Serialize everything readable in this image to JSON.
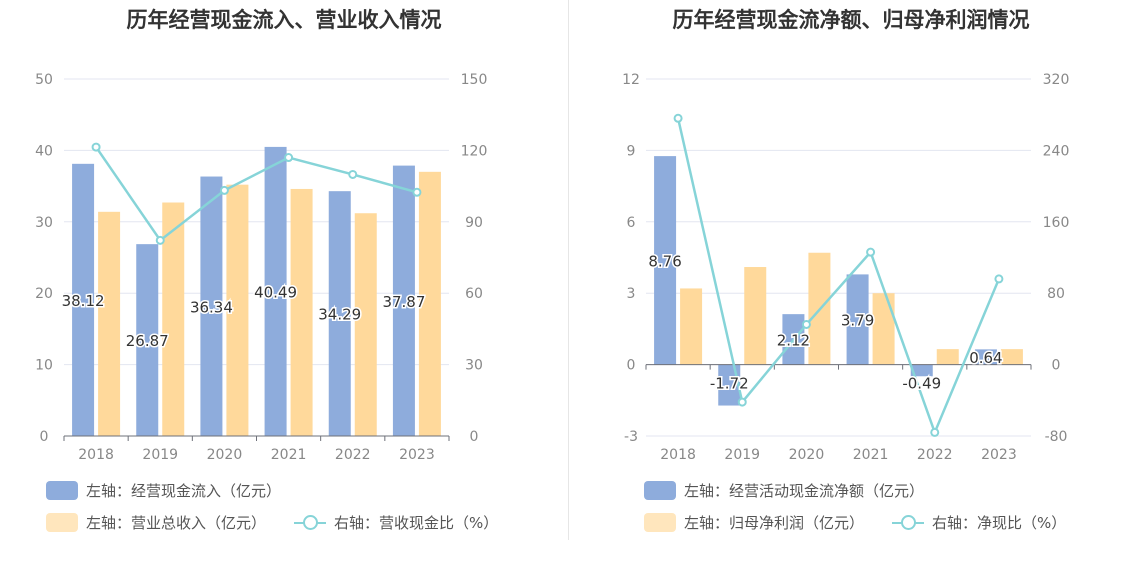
{
  "colors": {
    "bar_primary": "#8eacdc",
    "bar_secondary": "#ffd99b",
    "line": "#86d4d8",
    "axis_text": "#888888",
    "grid": "#e3e6f0"
  },
  "left": {
    "title": "历年经营现金流入、营业收入情况",
    "legend": {
      "bar1": "左轴：经营现金流入（亿元）",
      "bar2": "左轴：营业总收入（亿元）",
      "line": "右轴：营收现金比（%）"
    }
  },
  "right": {
    "title": "历年经营现金流净额、归母净利润情况",
    "legend": {
      "bar1": "左轴：经营活动现金流净额（亿元）",
      "bar2": "左轴：归母净利润（亿元）",
      "line": "右轴：净现比（%）"
    }
  },
  "chart_data": [
    {
      "type": "bar",
      "title": "历年经营现金流入、营业收入情况",
      "categories": [
        "2018",
        "2019",
        "2020",
        "2021",
        "2022",
        "2023"
      ],
      "ylim": [
        0,
        50
      ],
      "yticks": [
        "0",
        "10",
        "20",
        "30",
        "40",
        "50"
      ],
      "y2lim": [
        0,
        150
      ],
      "y2ticks": [
        "0",
        "30",
        "60",
        "90",
        "120",
        "150"
      ],
      "grid": true,
      "legend_position": "bottom",
      "series": [
        {
          "name": "左轴：经营现金流入（亿元）",
          "axis": "left",
          "kind": "bar",
          "values": [
            38.12,
            26.87,
            36.34,
            40.49,
            34.29,
            37.87
          ],
          "labels": [
            "38.12",
            "26.87",
            "36.34",
            "40.49",
            "34.29",
            "37.87"
          ]
        },
        {
          "name": "左轴：营业总收入（亿元）",
          "axis": "left",
          "kind": "bar",
          "values": [
            31.4,
            32.7,
            35.2,
            34.6,
            31.2,
            37.0
          ]
        },
        {
          "name": "右轴：营收现金比（%）",
          "axis": "right",
          "kind": "line",
          "values": [
            121.4,
            82.2,
            103.2,
            117.0,
            109.9,
            102.4
          ]
        }
      ]
    },
    {
      "type": "bar",
      "title": "历年经营现金流净额、归母净利润情况",
      "categories": [
        "2018",
        "2019",
        "2020",
        "2021",
        "2022",
        "2023"
      ],
      "ylim": [
        -3,
        12
      ],
      "yticks": [
        "-3",
        "0",
        "3",
        "6",
        "9",
        "12"
      ],
      "y2lim": [
        -80,
        320
      ],
      "y2ticks": [
        "-80",
        "0",
        "80",
        "160",
        "240",
        "320"
      ],
      "grid": true,
      "legend_position": "bottom",
      "series": [
        {
          "name": "左轴：经营活动现金流净额（亿元）",
          "axis": "left",
          "kind": "bar",
          "values": [
            8.76,
            -1.72,
            2.12,
            3.79,
            -0.49,
            0.64
          ],
          "labels": [
            "8.76",
            "-1.72",
            "2.12",
            "3.79",
            "-0.49",
            "0.64"
          ]
        },
        {
          "name": "左轴：归母净利润（亿元）",
          "axis": "left",
          "kind": "bar",
          "values": [
            3.2,
            4.1,
            4.7,
            3.0,
            0.65,
            0.65
          ]
        },
        {
          "name": "右轴：净现比（%）",
          "axis": "right",
          "kind": "line",
          "values": [
            276,
            -42,
            45,
            126,
            -76,
            96
          ]
        }
      ]
    }
  ]
}
